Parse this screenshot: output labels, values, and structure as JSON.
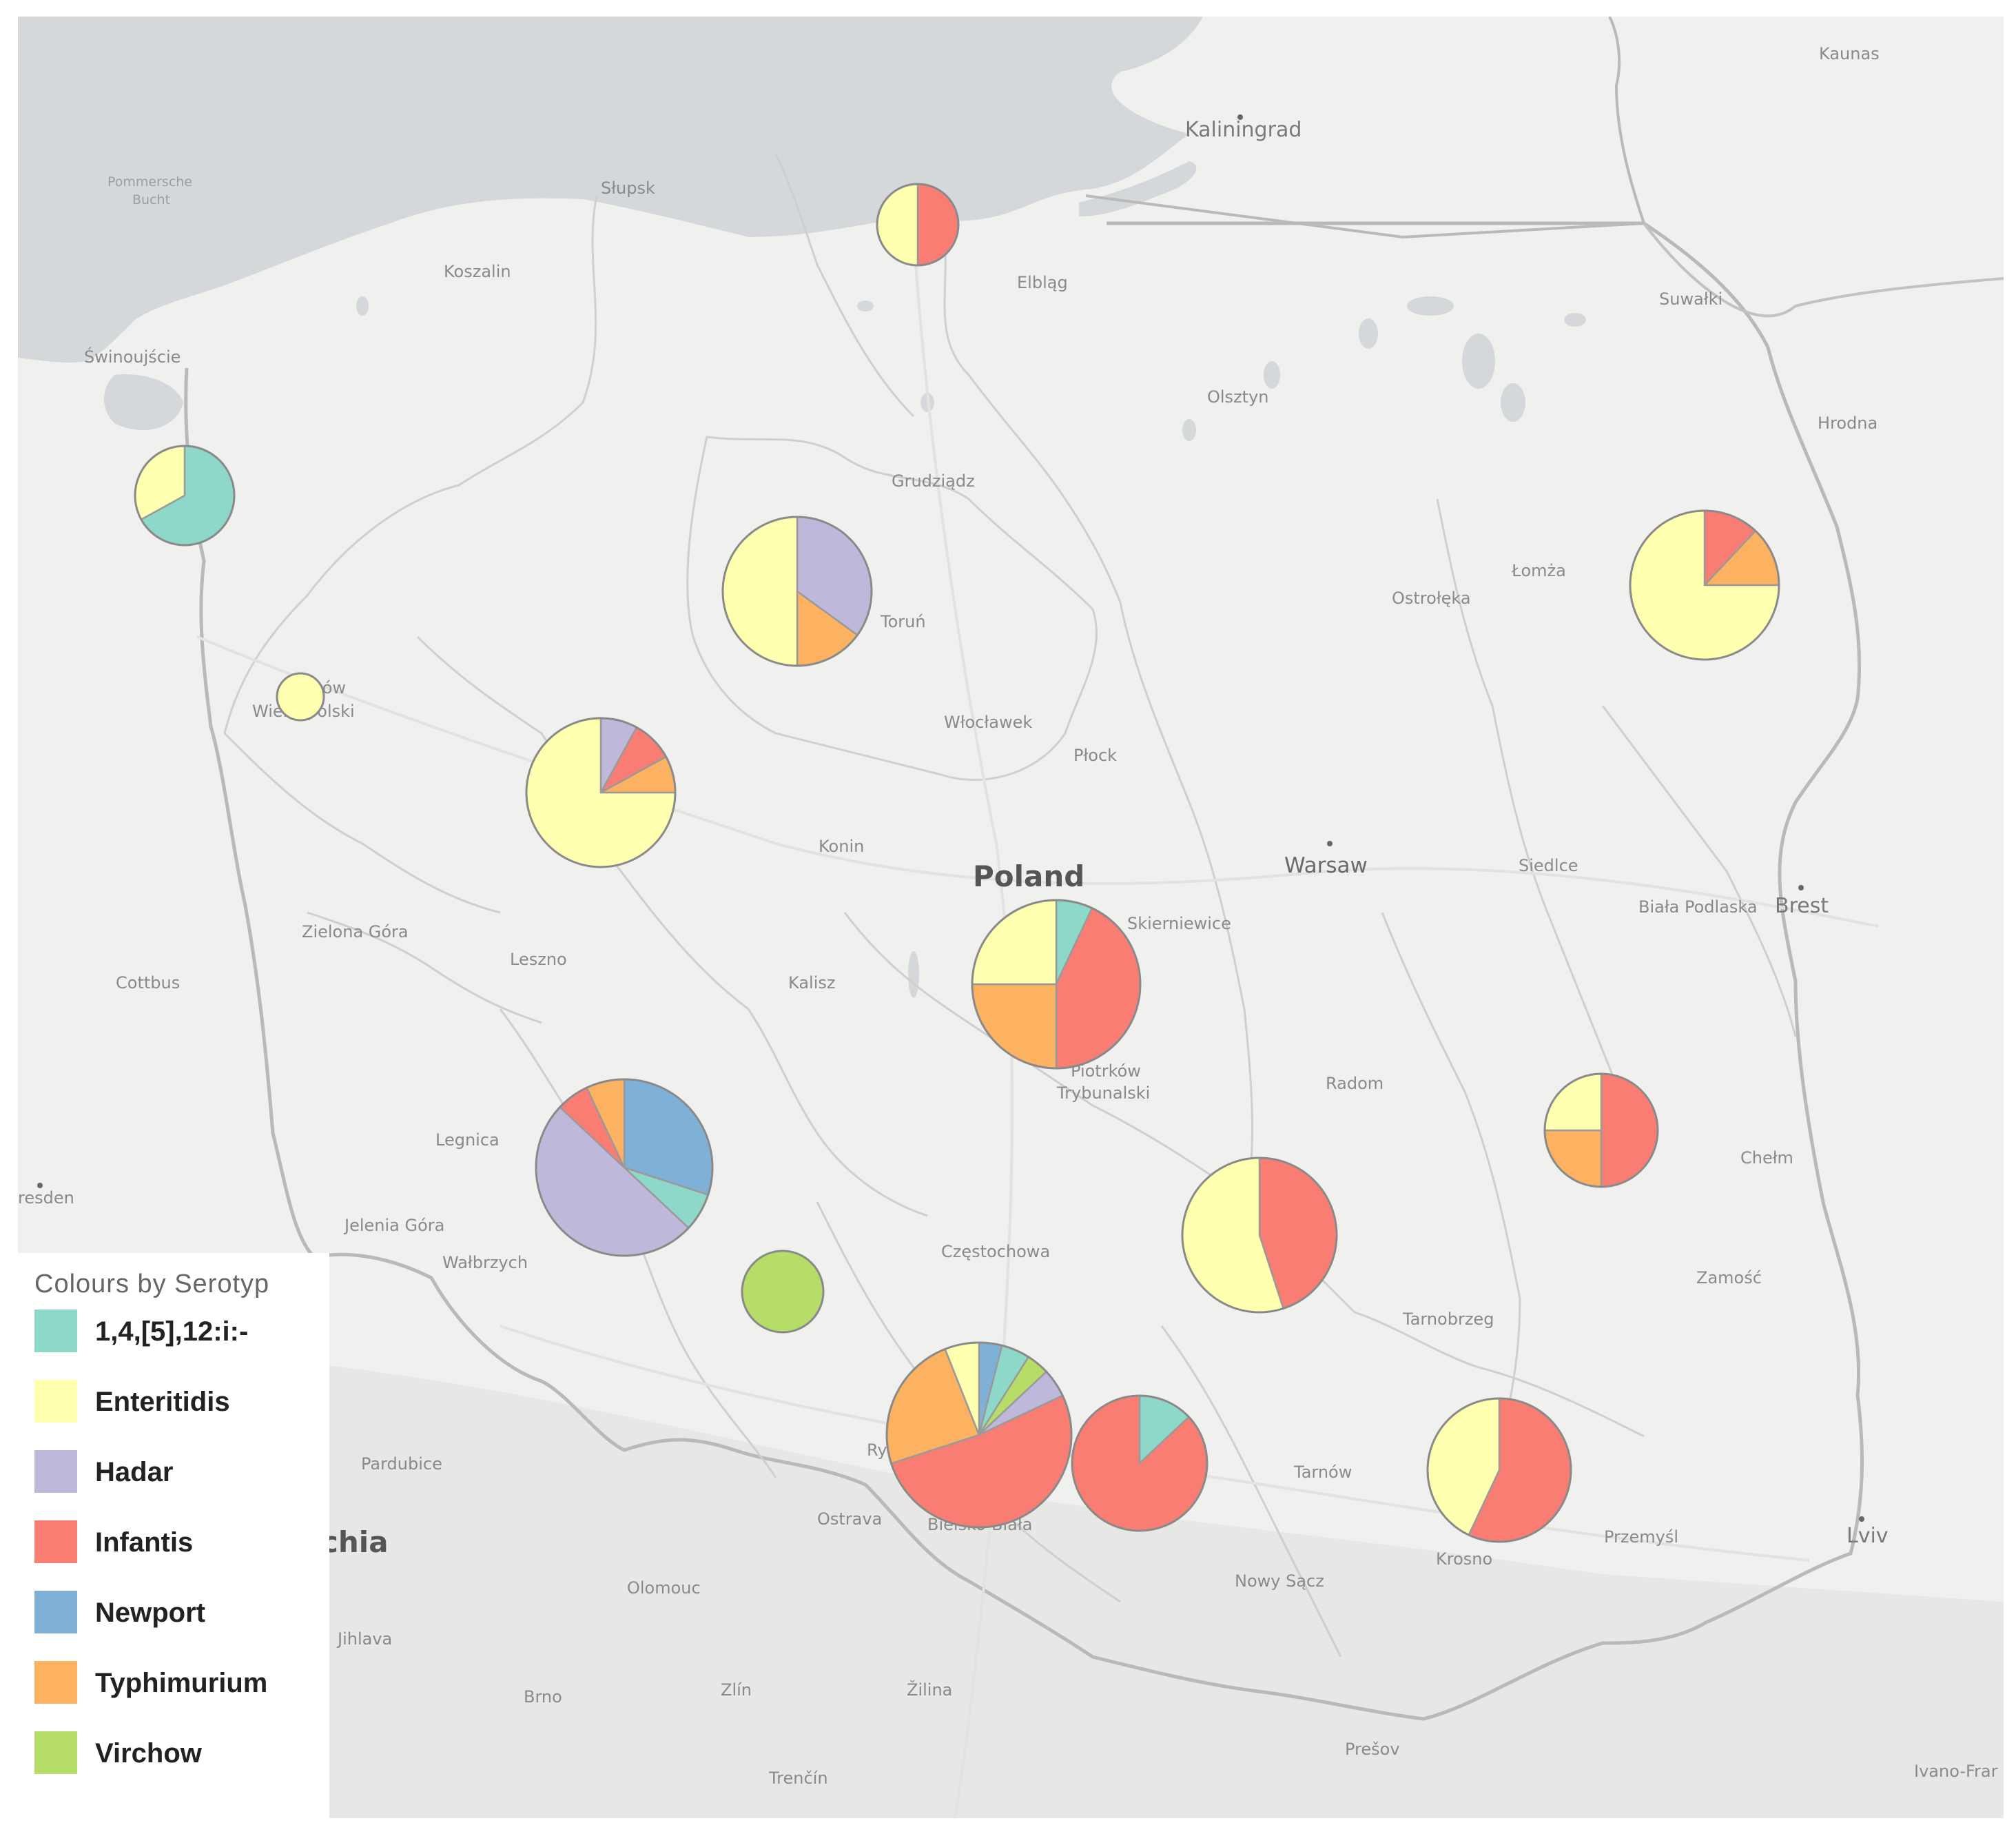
{
  "legend": {
    "title": "Colours by Serotyp",
    "items": [
      {
        "key": "s1",
        "label": "1,4,[5],12:i:-",
        "color": "#8ed8c9"
      },
      {
        "key": "enteritidis",
        "label": "Enteritidis",
        "color": "#ffffb0"
      },
      {
        "key": "hadar",
        "label": "Hadar",
        "color": "#bfb8db"
      },
      {
        "key": "infantis",
        "label": "Infantis",
        "color": "#f97d72"
      },
      {
        "key": "newport",
        "label": "Newport",
        "color": "#7fb0d8"
      },
      {
        "key": "typhimurium",
        "label": "Typhimurium",
        "color": "#fcb260"
      },
      {
        "key": "virchow",
        "label": "Virchow",
        "color": "#b5dd67"
      }
    ]
  },
  "places": [
    {
      "id": "kaunas",
      "label": "Kaunas",
      "cls": "place"
    },
    {
      "id": "kaliningrad",
      "label": "Kaliningrad",
      "cls": "place city"
    },
    {
      "id": "pommersche",
      "label": "Pommersche",
      "cls": "place sea"
    },
    {
      "id": "bucht",
      "label": "Bucht",
      "cls": "place sea"
    },
    {
      "id": "slupsk",
      "label": "Słupsk",
      "cls": "place"
    },
    {
      "id": "koszalin",
      "label": "Koszalin",
      "cls": "place"
    },
    {
      "id": "elblag",
      "label": "Elbląg",
      "cls": "place"
    },
    {
      "id": "suwalki",
      "label": "Suwałki",
      "cls": "place"
    },
    {
      "id": "swinoujscie",
      "label": "Świnoujście",
      "cls": "place"
    },
    {
      "id": "olsztyn",
      "label": "Olsztyn",
      "cls": "place"
    },
    {
      "id": "hrodna",
      "label": "Hrodna",
      "cls": "place"
    },
    {
      "id": "grudziadz",
      "label": "Grudziądz",
      "cls": "place"
    },
    {
      "id": "lomza",
      "label": "Łomża",
      "cls": "place"
    },
    {
      "id": "ostroleka",
      "label": "Ostrołęka",
      "cls": "place"
    },
    {
      "id": "torun",
      "label": "Toruń",
      "cls": "place"
    },
    {
      "id": "gorzow1",
      "label": "Gorzów",
      "cls": "place"
    },
    {
      "id": "gorzow2",
      "label": "Wielkopolski",
      "cls": "place"
    },
    {
      "id": "wloclawek",
      "label": "Włocławek",
      "cls": "place"
    },
    {
      "id": "plock",
      "label": "Płock",
      "cls": "place"
    },
    {
      "id": "konin",
      "label": "Konin",
      "cls": "place"
    },
    {
      "id": "poland",
      "label": "Poland",
      "cls": "place country"
    },
    {
      "id": "warsaw",
      "label": "Warsaw",
      "cls": "place capital"
    },
    {
      "id": "siedlce",
      "label": "Siedlce",
      "cls": "place"
    },
    {
      "id": "biala",
      "label": "Biała Podlaska",
      "cls": "place"
    },
    {
      "id": "brest",
      "label": "Brest",
      "cls": "place city"
    },
    {
      "id": "zielona",
      "label": "Zielona Góra",
      "cls": "place"
    },
    {
      "id": "skierniewice",
      "label": "Skierniewice",
      "cls": "place"
    },
    {
      "id": "leszno",
      "label": "Leszno",
      "cls": "place"
    },
    {
      "id": "cottbus",
      "label": "Cottbus",
      "cls": "place"
    },
    {
      "id": "kalisz",
      "label": "Kalisz",
      "cls": "place"
    },
    {
      "id": "piotrkow1",
      "label": "Piotrków",
      "cls": "place"
    },
    {
      "id": "piotrkow2",
      "label": "Trybunalski",
      "cls": "place"
    },
    {
      "id": "radom",
      "label": "Radom",
      "cls": "place"
    },
    {
      "id": "legnica",
      "label": "Legnica",
      "cls": "place"
    },
    {
      "id": "chelm",
      "label": "Chełm",
      "cls": "place"
    },
    {
      "id": "dresden",
      "label": "resden",
      "cls": "place"
    },
    {
      "id": "jelenia",
      "label": "Jelenia Góra",
      "cls": "place"
    },
    {
      "id": "czestochowa",
      "label": "Częstochowa",
      "cls": "place"
    },
    {
      "id": "walbrzych",
      "label": "Wałbrzych",
      "cls": "place"
    },
    {
      "id": "zamosc",
      "label": "Zamość",
      "cls": "place"
    },
    {
      "id": "tarnobrzeg",
      "label": "Tarnobrzeg",
      "cls": "place"
    },
    {
      "id": "rybnik",
      "label": "Ryb",
      "cls": "place"
    },
    {
      "id": "pardubice",
      "label": "Pardubice",
      "cls": "place"
    },
    {
      "id": "tarnow",
      "label": "Tarnów",
      "cls": "place"
    },
    {
      "id": "ostrava",
      "label": "Ostrava",
      "cls": "place"
    },
    {
      "id": "bielsko",
      "label": "Bielsko-Biała",
      "cls": "place"
    },
    {
      "id": "przemysl",
      "label": "Przemyśl",
      "cls": "place"
    },
    {
      "id": "lviv",
      "label": "Lviv",
      "cls": "place city"
    },
    {
      "id": "chia",
      "label": "chia",
      "cls": "place country"
    },
    {
      "id": "krosno",
      "label": "Krosno",
      "cls": "place"
    },
    {
      "id": "olomouc",
      "label": "Olomouc",
      "cls": "place"
    },
    {
      "id": "nowysacz",
      "label": "Nowy Sącz",
      "cls": "place"
    },
    {
      "id": "jihlava",
      "label": "Jihlava",
      "cls": "place"
    },
    {
      "id": "brno",
      "label": "Brno",
      "cls": "place"
    },
    {
      "id": "zlin",
      "label": "Zlín",
      "cls": "place"
    },
    {
      "id": "zilina",
      "label": "Žilina",
      "cls": "place"
    },
    {
      "id": "presov",
      "label": "Prešov",
      "cls": "place"
    },
    {
      "id": "trencin",
      "label": "Trenčín",
      "cls": "place"
    },
    {
      "id": "ivano",
      "label": "Ivano-Frar",
      "cls": "place"
    }
  ],
  "pies": [
    {
      "id": "gdansk",
      "slices": [
        {
          "s": "infantis",
          "v": 50
        },
        {
          "s": "enteritidis",
          "v": 50
        }
      ]
    },
    {
      "id": "szczecin",
      "slices": [
        {
          "s": "s1",
          "v": 67
        },
        {
          "s": "enteritidis",
          "v": 33
        }
      ]
    },
    {
      "id": "bydgoszcz",
      "slices": [
        {
          "s": "hadar",
          "v": 35
        },
        {
          "s": "typhimurium",
          "v": 15
        },
        {
          "s": "enteritidis",
          "v": 50
        }
      ]
    },
    {
      "id": "bialystok",
      "slices": [
        {
          "s": "infantis",
          "v": 12
        },
        {
          "s": "typhimurium",
          "v": 13
        },
        {
          "s": "enteritidis",
          "v": 75
        }
      ]
    },
    {
      "id": "gorzow",
      "slices": [
        {
          "s": "enteritidis",
          "v": 100
        }
      ]
    },
    {
      "id": "poznan",
      "slices": [
        {
          "s": "hadar",
          "v": 8
        },
        {
          "s": "infantis",
          "v": 9
        },
        {
          "s": "typhimurium",
          "v": 8
        },
        {
          "s": "enteritidis",
          "v": 75
        }
      ]
    },
    {
      "id": "lodz",
      "slices": [
        {
          "s": "s1",
          "v": 7
        },
        {
          "s": "infantis",
          "v": 43
        },
        {
          "s": "typhimurium",
          "v": 25
        },
        {
          "s": "enteritidis",
          "v": 25
        }
      ]
    },
    {
      "id": "lublin",
      "slices": [
        {
          "s": "infantis",
          "v": 50
        },
        {
          "s": "typhimurium",
          "v": 25
        },
        {
          "s": "enteritidis",
          "v": 25
        }
      ]
    },
    {
      "id": "wroclaw",
      "slices": [
        {
          "s": "newport",
          "v": 30
        },
        {
          "s": "s1",
          "v": 7
        },
        {
          "s": "hadar",
          "v": 50
        },
        {
          "s": "infantis",
          "v": 6
        },
        {
          "s": "typhimurium",
          "v": 7
        }
      ]
    },
    {
      "id": "kielce",
      "slices": [
        {
          "s": "infantis",
          "v": 45
        },
        {
          "s": "enteritidis",
          "v": 55
        }
      ]
    },
    {
      "id": "opole",
      "slices": [
        {
          "s": "virchow",
          "v": 100
        }
      ]
    },
    {
      "id": "katowice",
      "slices": [
        {
          "s": "newport",
          "v": 4
        },
        {
          "s": "s1",
          "v": 5
        },
        {
          "s": "virchow",
          "v": 4
        },
        {
          "s": "hadar",
          "v": 5
        },
        {
          "s": "infantis",
          "v": 52
        },
        {
          "s": "typhimurium",
          "v": 24
        },
        {
          "s": "enteritidis",
          "v": 6
        }
      ]
    },
    {
      "id": "krakow",
      "slices": [
        {
          "s": "s1",
          "v": 13
        },
        {
          "s": "infantis",
          "v": 87
        }
      ]
    },
    {
      "id": "rzeszow",
      "slices": [
        {
          "s": "infantis",
          "v": 57
        },
        {
          "s": "enteritidis",
          "v": 43
        }
      ]
    }
  ]
}
